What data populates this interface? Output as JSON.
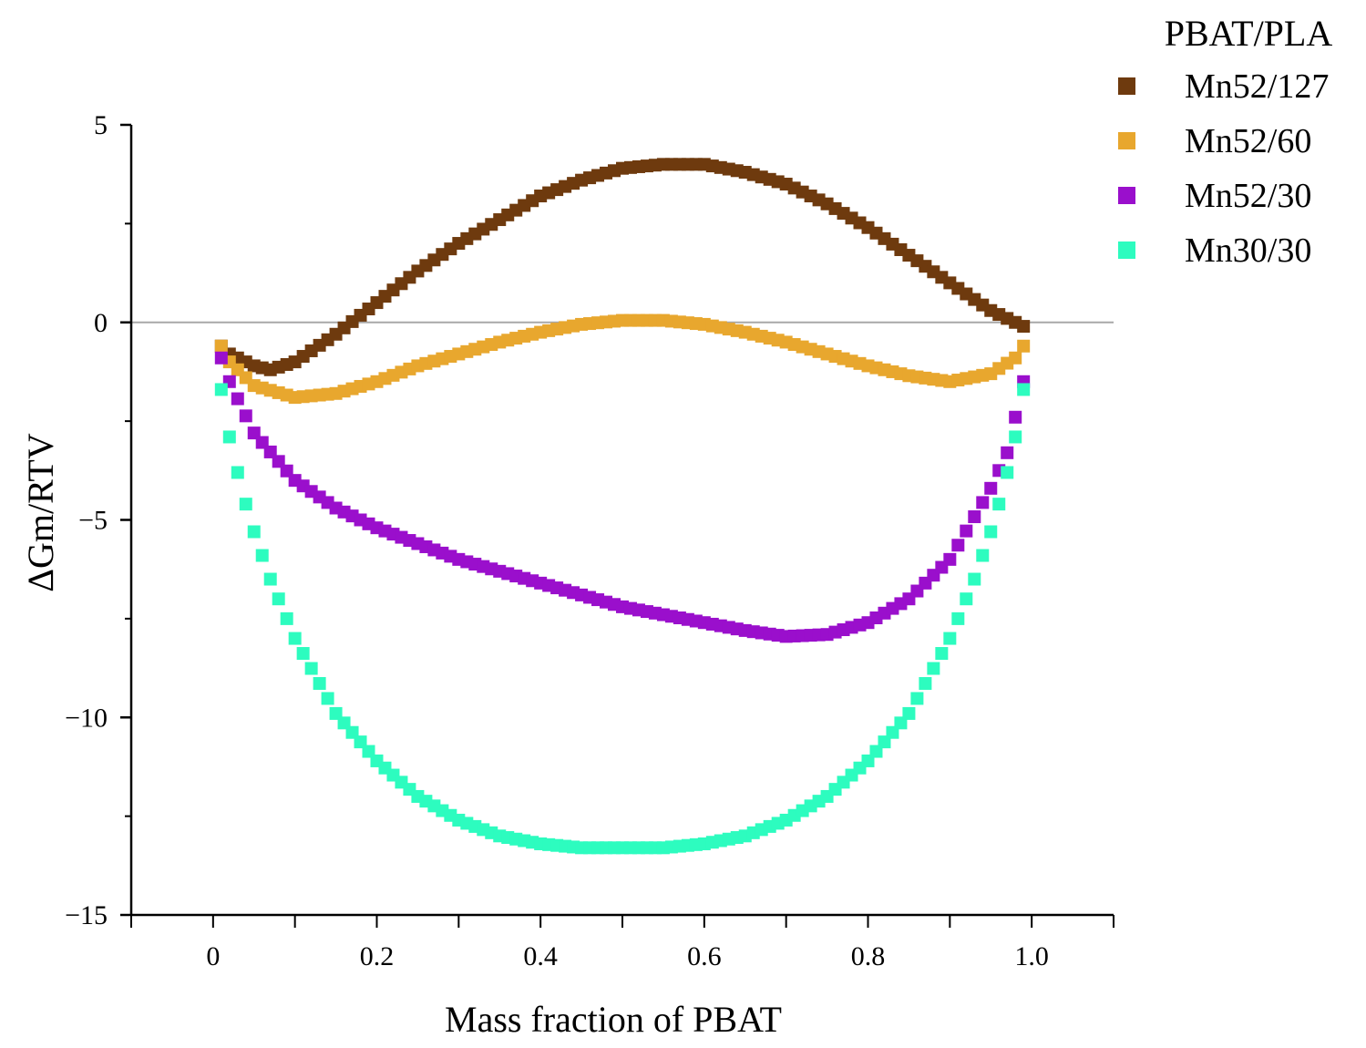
{
  "chart_data": {
    "type": "scatter",
    "title": "",
    "xlabel": "Mass fraction of PBAT",
    "ylabel": "ΔGm/RTV",
    "xlim": [
      -0.1,
      1.1
    ],
    "ylim": [
      -15,
      5
    ],
    "xticks": [
      0,
      0.2,
      0.4,
      0.6,
      0.8,
      1.0
    ],
    "xtick_labels": [
      "0",
      "0.2",
      "0.4",
      "0.6",
      "0.8",
      "1.0"
    ],
    "yticks": [
      5,
      0,
      -5,
      -10,
      -15
    ],
    "ytick_labels": [
      "5",
      "0",
      "−5",
      "−10",
      "−15"
    ],
    "reference_line": 0,
    "grid": false,
    "legend": {
      "title": "PBAT/PLA",
      "position": "top-right-outside"
    },
    "x": [
      0.01,
      0.02,
      0.05,
      0.1,
      0.15,
      0.2,
      0.25,
      0.3,
      0.35,
      0.4,
      0.45,
      0.5,
      0.55,
      0.6,
      0.65,
      0.7,
      0.75,
      0.8,
      0.85,
      0.9,
      0.95,
      0.98,
      0.99
    ],
    "series": [
      {
        "name": "Mn52/127",
        "color": "#6e3a0e",
        "points": [
          [
            0.01,
            -0.6
          ],
          [
            0.02,
            -0.8
          ],
          [
            0.05,
            -1.1
          ],
          [
            0.07,
            -1.2
          ],
          [
            0.1,
            -1.0
          ],
          [
            0.15,
            -0.3
          ],
          [
            0.2,
            0.5
          ],
          [
            0.25,
            1.3
          ],
          [
            0.3,
            2.0
          ],
          [
            0.35,
            2.6
          ],
          [
            0.4,
            3.2
          ],
          [
            0.45,
            3.6
          ],
          [
            0.5,
            3.9
          ],
          [
            0.55,
            4.0
          ],
          [
            0.6,
            4.0
          ],
          [
            0.65,
            3.8
          ],
          [
            0.7,
            3.5
          ],
          [
            0.75,
            3.0
          ],
          [
            0.8,
            2.4
          ],
          [
            0.85,
            1.7
          ],
          [
            0.9,
            1.0
          ],
          [
            0.95,
            0.3
          ],
          [
            0.98,
            0.0
          ],
          [
            0.99,
            -0.1
          ]
        ]
      },
      {
        "name": "Mn52/60",
        "color": "#e8a72e",
        "points": [
          [
            0.01,
            -0.6
          ],
          [
            0.02,
            -1.0
          ],
          [
            0.05,
            -1.6
          ],
          [
            0.1,
            -1.9
          ],
          [
            0.15,
            -1.8
          ],
          [
            0.2,
            -1.5
          ],
          [
            0.25,
            -1.1
          ],
          [
            0.3,
            -0.8
          ],
          [
            0.35,
            -0.5
          ],
          [
            0.4,
            -0.25
          ],
          [
            0.45,
            -0.05
          ],
          [
            0.5,
            0.05
          ],
          [
            0.55,
            0.05
          ],
          [
            0.6,
            -0.05
          ],
          [
            0.65,
            -0.25
          ],
          [
            0.7,
            -0.5
          ],
          [
            0.75,
            -0.8
          ],
          [
            0.8,
            -1.1
          ],
          [
            0.85,
            -1.35
          ],
          [
            0.9,
            -1.5
          ],
          [
            0.95,
            -1.3
          ],
          [
            0.98,
            -0.9
          ],
          [
            0.99,
            -0.6
          ]
        ]
      },
      {
        "name": "Mn52/30",
        "color": "#9a0fcc",
        "points": [
          [
            0.01,
            -0.9
          ],
          [
            0.02,
            -1.5
          ],
          [
            0.05,
            -2.8
          ],
          [
            0.1,
            -4.0
          ],
          [
            0.15,
            -4.7
          ],
          [
            0.2,
            -5.2
          ],
          [
            0.25,
            -5.6
          ],
          [
            0.3,
            -6.0
          ],
          [
            0.35,
            -6.3
          ],
          [
            0.4,
            -6.6
          ],
          [
            0.45,
            -6.9
          ],
          [
            0.5,
            -7.2
          ],
          [
            0.55,
            -7.4
          ],
          [
            0.6,
            -7.6
          ],
          [
            0.65,
            -7.8
          ],
          [
            0.7,
            -7.95
          ],
          [
            0.75,
            -7.9
          ],
          [
            0.8,
            -7.6
          ],
          [
            0.85,
            -7.0
          ],
          [
            0.9,
            -6.0
          ],
          [
            0.95,
            -4.2
          ],
          [
            0.97,
            -3.3
          ],
          [
            0.98,
            -2.4
          ],
          [
            0.99,
            -1.5
          ]
        ]
      },
      {
        "name": "Mn30/30",
        "color": "#2dfcbf",
        "points": [
          [
            0.01,
            -1.7
          ],
          [
            0.02,
            -2.9
          ],
          [
            0.03,
            -3.8
          ],
          [
            0.04,
            -4.6
          ],
          [
            0.05,
            -5.3
          ],
          [
            0.06,
            -5.9
          ],
          [
            0.07,
            -6.5
          ],
          [
            0.08,
            -7.0
          ],
          [
            0.1,
            -8.0
          ],
          [
            0.15,
            -9.9
          ],
          [
            0.2,
            -11.1
          ],
          [
            0.25,
            -12.0
          ],
          [
            0.3,
            -12.6
          ],
          [
            0.35,
            -13.0
          ],
          [
            0.4,
            -13.2
          ],
          [
            0.45,
            -13.3
          ],
          [
            0.5,
            -13.3
          ],
          [
            0.55,
            -13.3
          ],
          [
            0.6,
            -13.2
          ],
          [
            0.65,
            -13.0
          ],
          [
            0.7,
            -12.6
          ],
          [
            0.75,
            -12.0
          ],
          [
            0.8,
            -11.1
          ],
          [
            0.85,
            -9.9
          ],
          [
            0.9,
            -8.0
          ],
          [
            0.92,
            -7.0
          ],
          [
            0.93,
            -6.5
          ],
          [
            0.94,
            -5.9
          ],
          [
            0.95,
            -5.3
          ],
          [
            0.96,
            -4.6
          ],
          [
            0.97,
            -3.8
          ],
          [
            0.98,
            -2.9
          ],
          [
            0.99,
            -1.7
          ]
        ]
      }
    ]
  }
}
